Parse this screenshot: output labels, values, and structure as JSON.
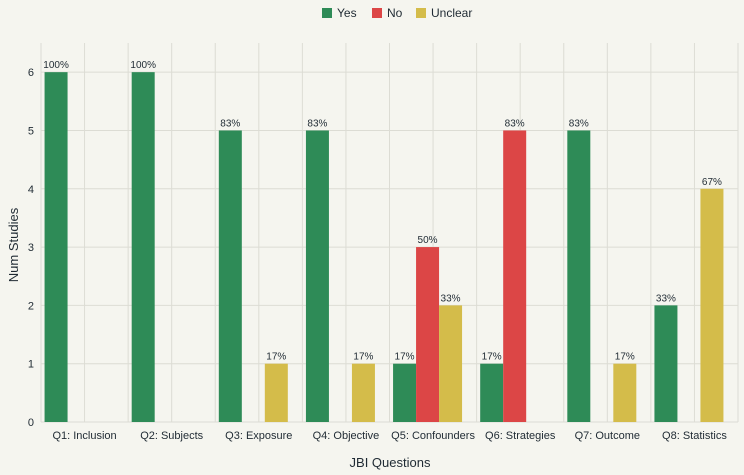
{
  "chart_data": {
    "type": "bar",
    "title": "",
    "xlabel": "JBI Questions",
    "ylabel": "Num Studies",
    "ylim": [
      0,
      6.5
    ],
    "yticks": [
      0,
      1,
      2,
      3,
      4,
      5,
      6
    ],
    "grid": true,
    "legend_position": "top-center",
    "categories": [
      "Q1: Inclusion",
      "Q2: Subjects",
      "Q3: Exposure",
      "Q4: Objective",
      "Q5: Confounders",
      "Q6: Strategies",
      "Q7: Outcome",
      "Q8: Statistics"
    ],
    "series": [
      {
        "name": "Yes",
        "color": "#2e8b57",
        "values": [
          6,
          6,
          5,
          5,
          1,
          1,
          5,
          2
        ],
        "labels": [
          "100%",
          "100%",
          "83%",
          "83%",
          "17%",
          "17%",
          "83%",
          "33%"
        ]
      },
      {
        "name": "No",
        "color": "#dc4646",
        "values": [
          0,
          0,
          0,
          0,
          3,
          5,
          0,
          0
        ],
        "labels": [
          "",
          "",
          "",
          "",
          "50%",
          "83%",
          "",
          ""
        ]
      },
      {
        "name": "Unclear",
        "color": "#d4bc4a",
        "values": [
          0,
          0,
          1,
          1,
          2,
          0,
          1,
          4
        ],
        "labels": [
          "",
          "",
          "17%",
          "17%",
          "33%",
          "",
          "17%",
          "67%"
        ]
      }
    ]
  }
}
